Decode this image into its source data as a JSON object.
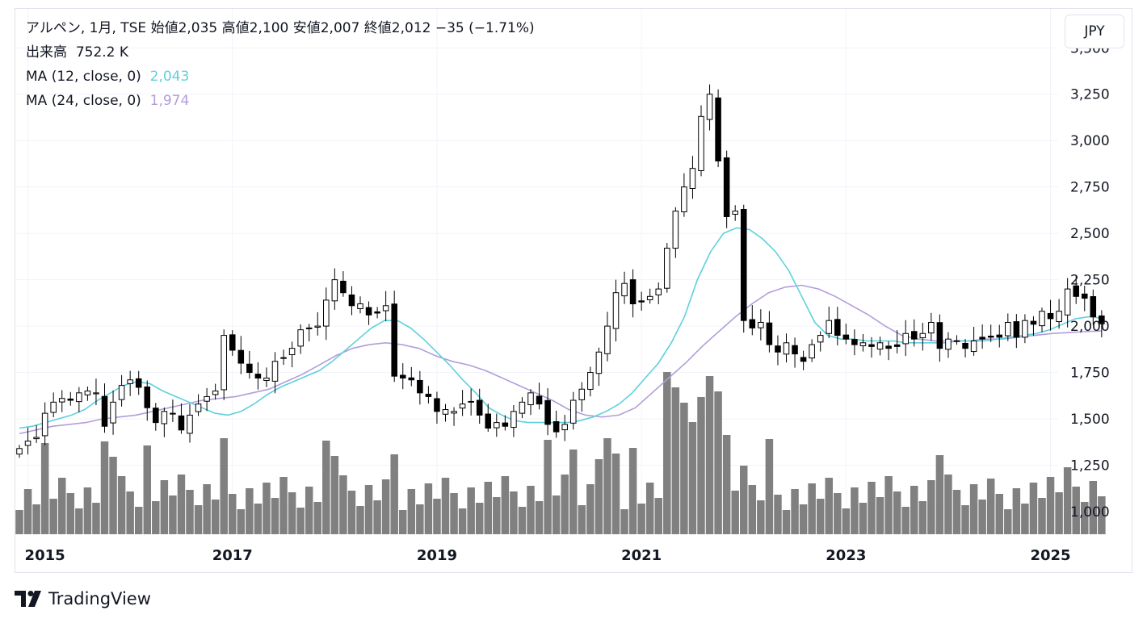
{
  "legend": {
    "line1": "アルペン, 1月, TSE  始値2,035  高値2,100  安値2,007  終値2,012  −35 (−1.71%)",
    "volume_label": "出来高",
    "volume_value": "752.2 K",
    "ma12_label": "MA (12, close, 0)",
    "ma12_value": "2,043",
    "ma24_label": "MA (24, close, 0)",
    "ma24_value": "1,974"
  },
  "currency_button": "JPY",
  "brand": "TradingView",
  "colors": {
    "up_body": "#ffffff",
    "candle": "#000000",
    "volume": "#808080",
    "ma12": "#5ed0dc",
    "ma24": "#b39ddb"
  },
  "chart_data": {
    "type": "candlestick",
    "timeframe": "1M",
    "x_start": "2014-12",
    "x_ticks": [
      "2015",
      "2017",
      "2019",
      "2021",
      "2023",
      "2025"
    ],
    "y_ticks": [
      "3,500",
      "3,250",
      "3,000",
      "2,750",
      "2,500",
      "2,250",
      "2,000",
      "1,750",
      "1,500",
      "1,250",
      "1,000"
    ],
    "ylim": [
      878,
      3710
    ],
    "grid": true,
    "closes": [
      1340,
      1380,
      1400,
      1530,
      1590,
      1610,
      1600,
      1640,
      1650,
      1640,
      1460,
      1590,
      1680,
      1710,
      1670,
      1560,
      1480,
      1540,
      1530,
      1440,
      1520,
      1580,
      1620,
      1650,
      1950,
      1870,
      1800,
      1750,
      1720,
      1720,
      1810,
      1830,
      1880,
      1980,
      1990,
      2000,
      2140,
      2250,
      2180,
      2110,
      2120,
      2060,
      2070,
      2110,
      1730,
      1720,
      1710,
      1640,
      1620,
      1540,
      1550,
      1540,
      1580,
      1590,
      1520,
      1450,
      1480,
      1460,
      1540,
      1590,
      1640,
      1580,
      1470,
      1430,
      1470,
      1600,
      1660,
      1750,
      1860,
      2000,
      2180,
      2230,
      2120,
      2130,
      2160,
      2200,
      2420,
      2620,
      2750,
      2850,
      3130,
      3250,
      2890,
      2590,
      2620,
      2030,
      1990,
      2020,
      1900,
      1860,
      1910,
      1850,
      1810,
      1900,
      1950,
      2030,
      1950,
      1930,
      1900,
      1910,
      1890,
      1910,
      1880,
      1890,
      1960,
      1930,
      1960,
      2020,
      1880,
      1930,
      1920,
      1880,
      1920,
      1930,
      1940,
      1940,
      2020,
      1940,
      2030,
      2010,
      2080,
      2040,
      2080,
      2200,
      2160,
      2150,
      2050,
      2012
    ],
    "ma12": [
      1450,
      1460,
      1480,
      1500,
      1520,
      1550,
      1600,
      1640,
      1680,
      1700,
      1690,
      1650,
      1620,
      1590,
      1560,
      1530,
      1520,
      1540,
      1580,
      1630,
      1670,
      1700,
      1730,
      1760,
      1810,
      1870,
      1930,
      1990,
      2030,
      2030,
      1990,
      1930,
      1860,
      1790,
      1710,
      1640,
      1560,
      1520,
      1490,
      1480,
      1480,
      1480,
      1480,
      1490,
      1510,
      1540,
      1580,
      1640,
      1720,
      1800,
      1910,
      2050,
      2250,
      2400,
      2500,
      2530,
      2520,
      2470,
      2400,
      2300,
      2160,
      2020,
      1950,
      1930,
      1930,
      1920,
      1920,
      1920,
      1910,
      1910,
      1910,
      1910,
      1920,
      1920,
      1920,
      1930,
      1940,
      1950,
      1960,
      1980,
      2010,
      2040,
      2050,
      2043
    ],
    "ma24": [
      1420,
      1440,
      1460,
      1470,
      1480,
      1500,
      1510,
      1520,
      1540,
      1560,
      1580,
      1600,
      1610,
      1620,
      1640,
      1660,
      1700,
      1740,
      1790,
      1840,
      1880,
      1900,
      1910,
      1900,
      1880,
      1840,
      1810,
      1790,
      1760,
      1720,
      1680,
      1640,
      1600,
      1550,
      1520,
      1510,
      1520,
      1560,
      1640,
      1720,
      1800,
      1890,
      1970,
      2050,
      2120,
      2180,
      2210,
      2220,
      2200,
      2160,
      2110,
      2060,
      2000,
      1950,
      1930,
      1920,
      1920,
      1920,
      1930,
      1930,
      1940,
      1950,
      1960,
      1965,
      1970,
      1974
    ],
    "volume_scale_note": "relative bar heights"
  }
}
